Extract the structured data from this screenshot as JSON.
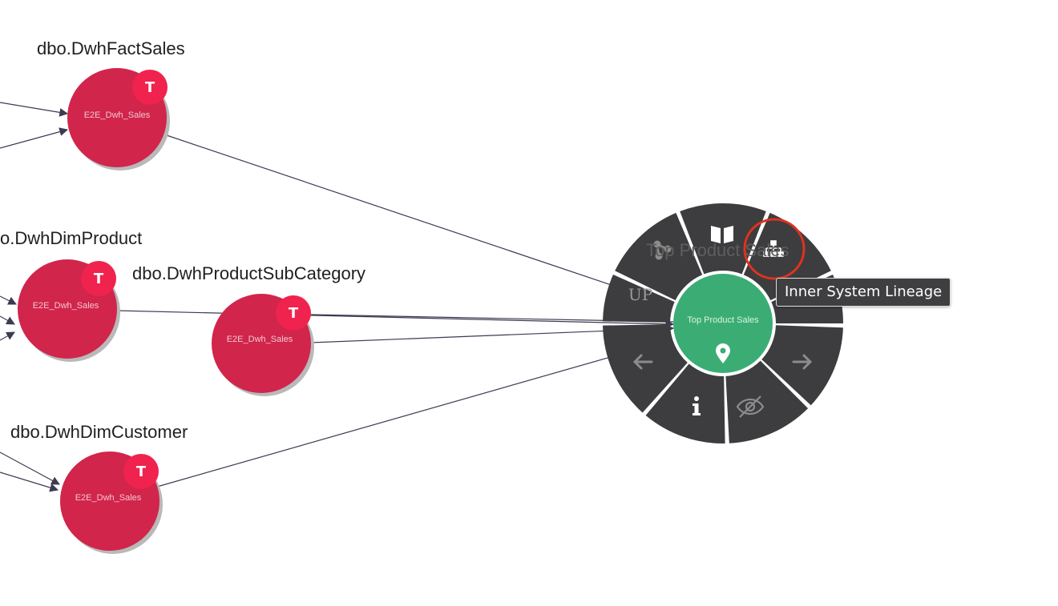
{
  "nodes": [
    {
      "title": "dbo.DwhFactSales",
      "system": "E2E_Dwh_Sales",
      "badge": "T"
    },
    {
      "title": "o.DwhDimProduct",
      "system": "E2E_Dwh_Sales",
      "badge": "T"
    },
    {
      "title": "dbo.DwhProductSubCategory",
      "system": "E2E_Dwh_Sales",
      "badge": "T"
    },
    {
      "title": "dbo.DwhDimCustomer",
      "system": "E2E_Dwh_Sales",
      "badge": "T"
    }
  ],
  "center_node": {
    "label": "Top Product Sales",
    "ghost_title": "Top Product Sales",
    "icon": "map-pin-icon"
  },
  "radial_menu": {
    "items": [
      {
        "name": "share-icon"
      },
      {
        "name": "book-icon"
      },
      {
        "name": "sitemap-icon"
      },
      {
        "name": "up-button",
        "label": "UP"
      },
      {
        "name": "arrow-left-icon"
      },
      {
        "name": "arrow-right-icon"
      },
      {
        "name": "info-icon"
      },
      {
        "name": "eye-slash-icon"
      }
    ],
    "tooltip": "Inner System Lineage"
  },
  "colors": {
    "node_fill": "#d1254b",
    "badge_fill": "#f0224e",
    "center_fill": "#3bad74",
    "menu_fill": "#3d3d3f",
    "highlight_ring": "#e0321e",
    "edge": "#3b3b52"
  }
}
